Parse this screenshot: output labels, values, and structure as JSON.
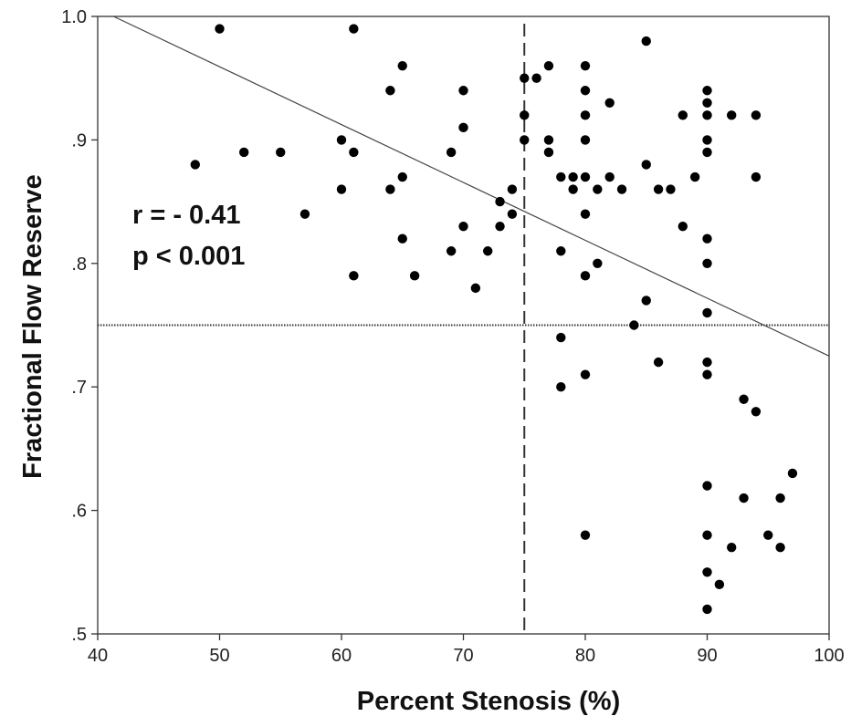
{
  "chart_data": {
    "type": "scatter",
    "title": "",
    "xlabel": "Percent Stenosis (%)",
    "ylabel": "Fractional Flow Reserve",
    "xlim": [
      40,
      100
    ],
    "ylim": [
      0.5,
      1.0
    ],
    "x_ticks": [
      40,
      50,
      60,
      70,
      80,
      90,
      100
    ],
    "x_tick_labels": [
      "40",
      "50",
      "60",
      "70",
      "80",
      "90",
      "100"
    ],
    "y_ticks": [
      0.5,
      0.6,
      0.7,
      0.8,
      0.9,
      1.0
    ],
    "y_tick_labels": [
      ".5",
      ".6",
      ".7",
      ".8",
      ".9",
      "1.0"
    ],
    "grid": false,
    "annotations": [
      "r = - 0.41",
      "p < 0.001"
    ],
    "reference_lines": {
      "vertical_dashed_x": 75,
      "horizontal_dotted_y": 0.75
    },
    "regression_line": {
      "x": [
        41.3,
        100
      ],
      "y": [
        1.0,
        0.725
      ]
    },
    "points": [
      [
        48,
        0.88
      ],
      [
        50,
        0.99
      ],
      [
        52,
        0.89
      ],
      [
        55,
        0.89
      ],
      [
        57,
        0.84
      ],
      [
        60,
        0.9
      ],
      [
        60,
        0.86
      ],
      [
        61,
        0.99
      ],
      [
        61,
        0.89
      ],
      [
        61,
        0.79
      ],
      [
        64,
        0.94
      ],
      [
        64,
        0.86
      ],
      [
        65,
        0.96
      ],
      [
        65,
        0.87
      ],
      [
        65,
        0.82
      ],
      [
        66,
        0.79
      ],
      [
        69,
        0.89
      ],
      [
        69,
        0.81
      ],
      [
        70,
        0.94
      ],
      [
        70,
        0.91
      ],
      [
        70,
        0.83
      ],
      [
        71,
        0.78
      ],
      [
        72,
        0.81
      ],
      [
        73,
        0.85
      ],
      [
        73,
        0.83
      ],
      [
        74,
        0.86
      ],
      [
        74,
        0.84
      ],
      [
        75,
        0.95
      ],
      [
        75,
        0.92
      ],
      [
        75,
        0.9
      ],
      [
        76,
        0.95
      ],
      [
        77,
        0.96
      ],
      [
        77,
        0.9
      ],
      [
        77,
        0.89
      ],
      [
        78,
        0.87
      ],
      [
        78,
        0.81
      ],
      [
        78,
        0.74
      ],
      [
        78,
        0.7
      ],
      [
        79,
        0.87
      ],
      [
        79,
        0.86
      ],
      [
        80,
        0.96
      ],
      [
        80,
        0.94
      ],
      [
        80,
        0.92
      ],
      [
        80,
        0.9
      ],
      [
        80,
        0.87
      ],
      [
        80,
        0.84
      ],
      [
        80,
        0.79
      ],
      [
        80,
        0.71
      ],
      [
        80,
        0.58
      ],
      [
        81,
        0.86
      ],
      [
        81,
        0.8
      ],
      [
        82,
        0.93
      ],
      [
        82,
        0.87
      ],
      [
        83,
        0.86
      ],
      [
        84,
        0.75
      ],
      [
        85,
        0.98
      ],
      [
        85,
        0.88
      ],
      [
        85,
        0.77
      ],
      [
        86,
        0.86
      ],
      [
        86,
        0.72
      ],
      [
        87,
        0.86
      ],
      [
        88,
        0.92
      ],
      [
        88,
        0.83
      ],
      [
        89,
        0.87
      ],
      [
        90,
        0.94
      ],
      [
        90,
        0.93
      ],
      [
        90,
        0.92
      ],
      [
        90,
        0.9
      ],
      [
        90,
        0.89
      ],
      [
        90,
        0.82
      ],
      [
        90,
        0.8
      ],
      [
        90,
        0.76
      ],
      [
        90,
        0.72
      ],
      [
        90,
        0.71
      ],
      [
        90,
        0.62
      ],
      [
        90,
        0.58
      ],
      [
        90,
        0.55
      ],
      [
        90,
        0.52
      ],
      [
        91,
        0.54
      ],
      [
        92,
        0.92
      ],
      [
        92,
        0.57
      ],
      [
        93,
        0.69
      ],
      [
        93,
        0.61
      ],
      [
        94,
        0.92
      ],
      [
        94,
        0.87
      ],
      [
        94,
        0.68
      ],
      [
        95,
        0.58
      ],
      [
        96,
        0.61
      ],
      [
        96,
        0.57
      ],
      [
        97,
        0.63
      ]
    ]
  },
  "colors": {
    "marker": "#000000",
    "axis": "#333333"
  }
}
